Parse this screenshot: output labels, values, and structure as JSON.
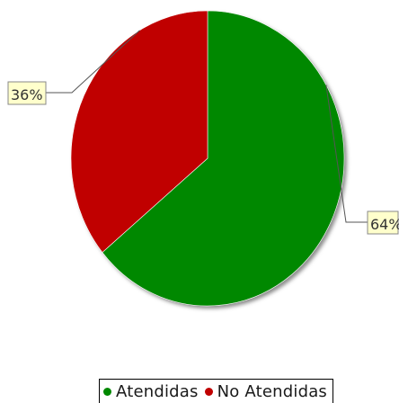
{
  "chart_data": {
    "type": "pie",
    "slices": [
      {
        "label": "Atendidas",
        "value": 64,
        "display": "64%",
        "color": "#008800"
      },
      {
        "label": "No Atendidas",
        "value": 36,
        "display": "36%",
        "color": "#c00000"
      }
    ],
    "legend_position": "bottom",
    "title": ""
  }
}
